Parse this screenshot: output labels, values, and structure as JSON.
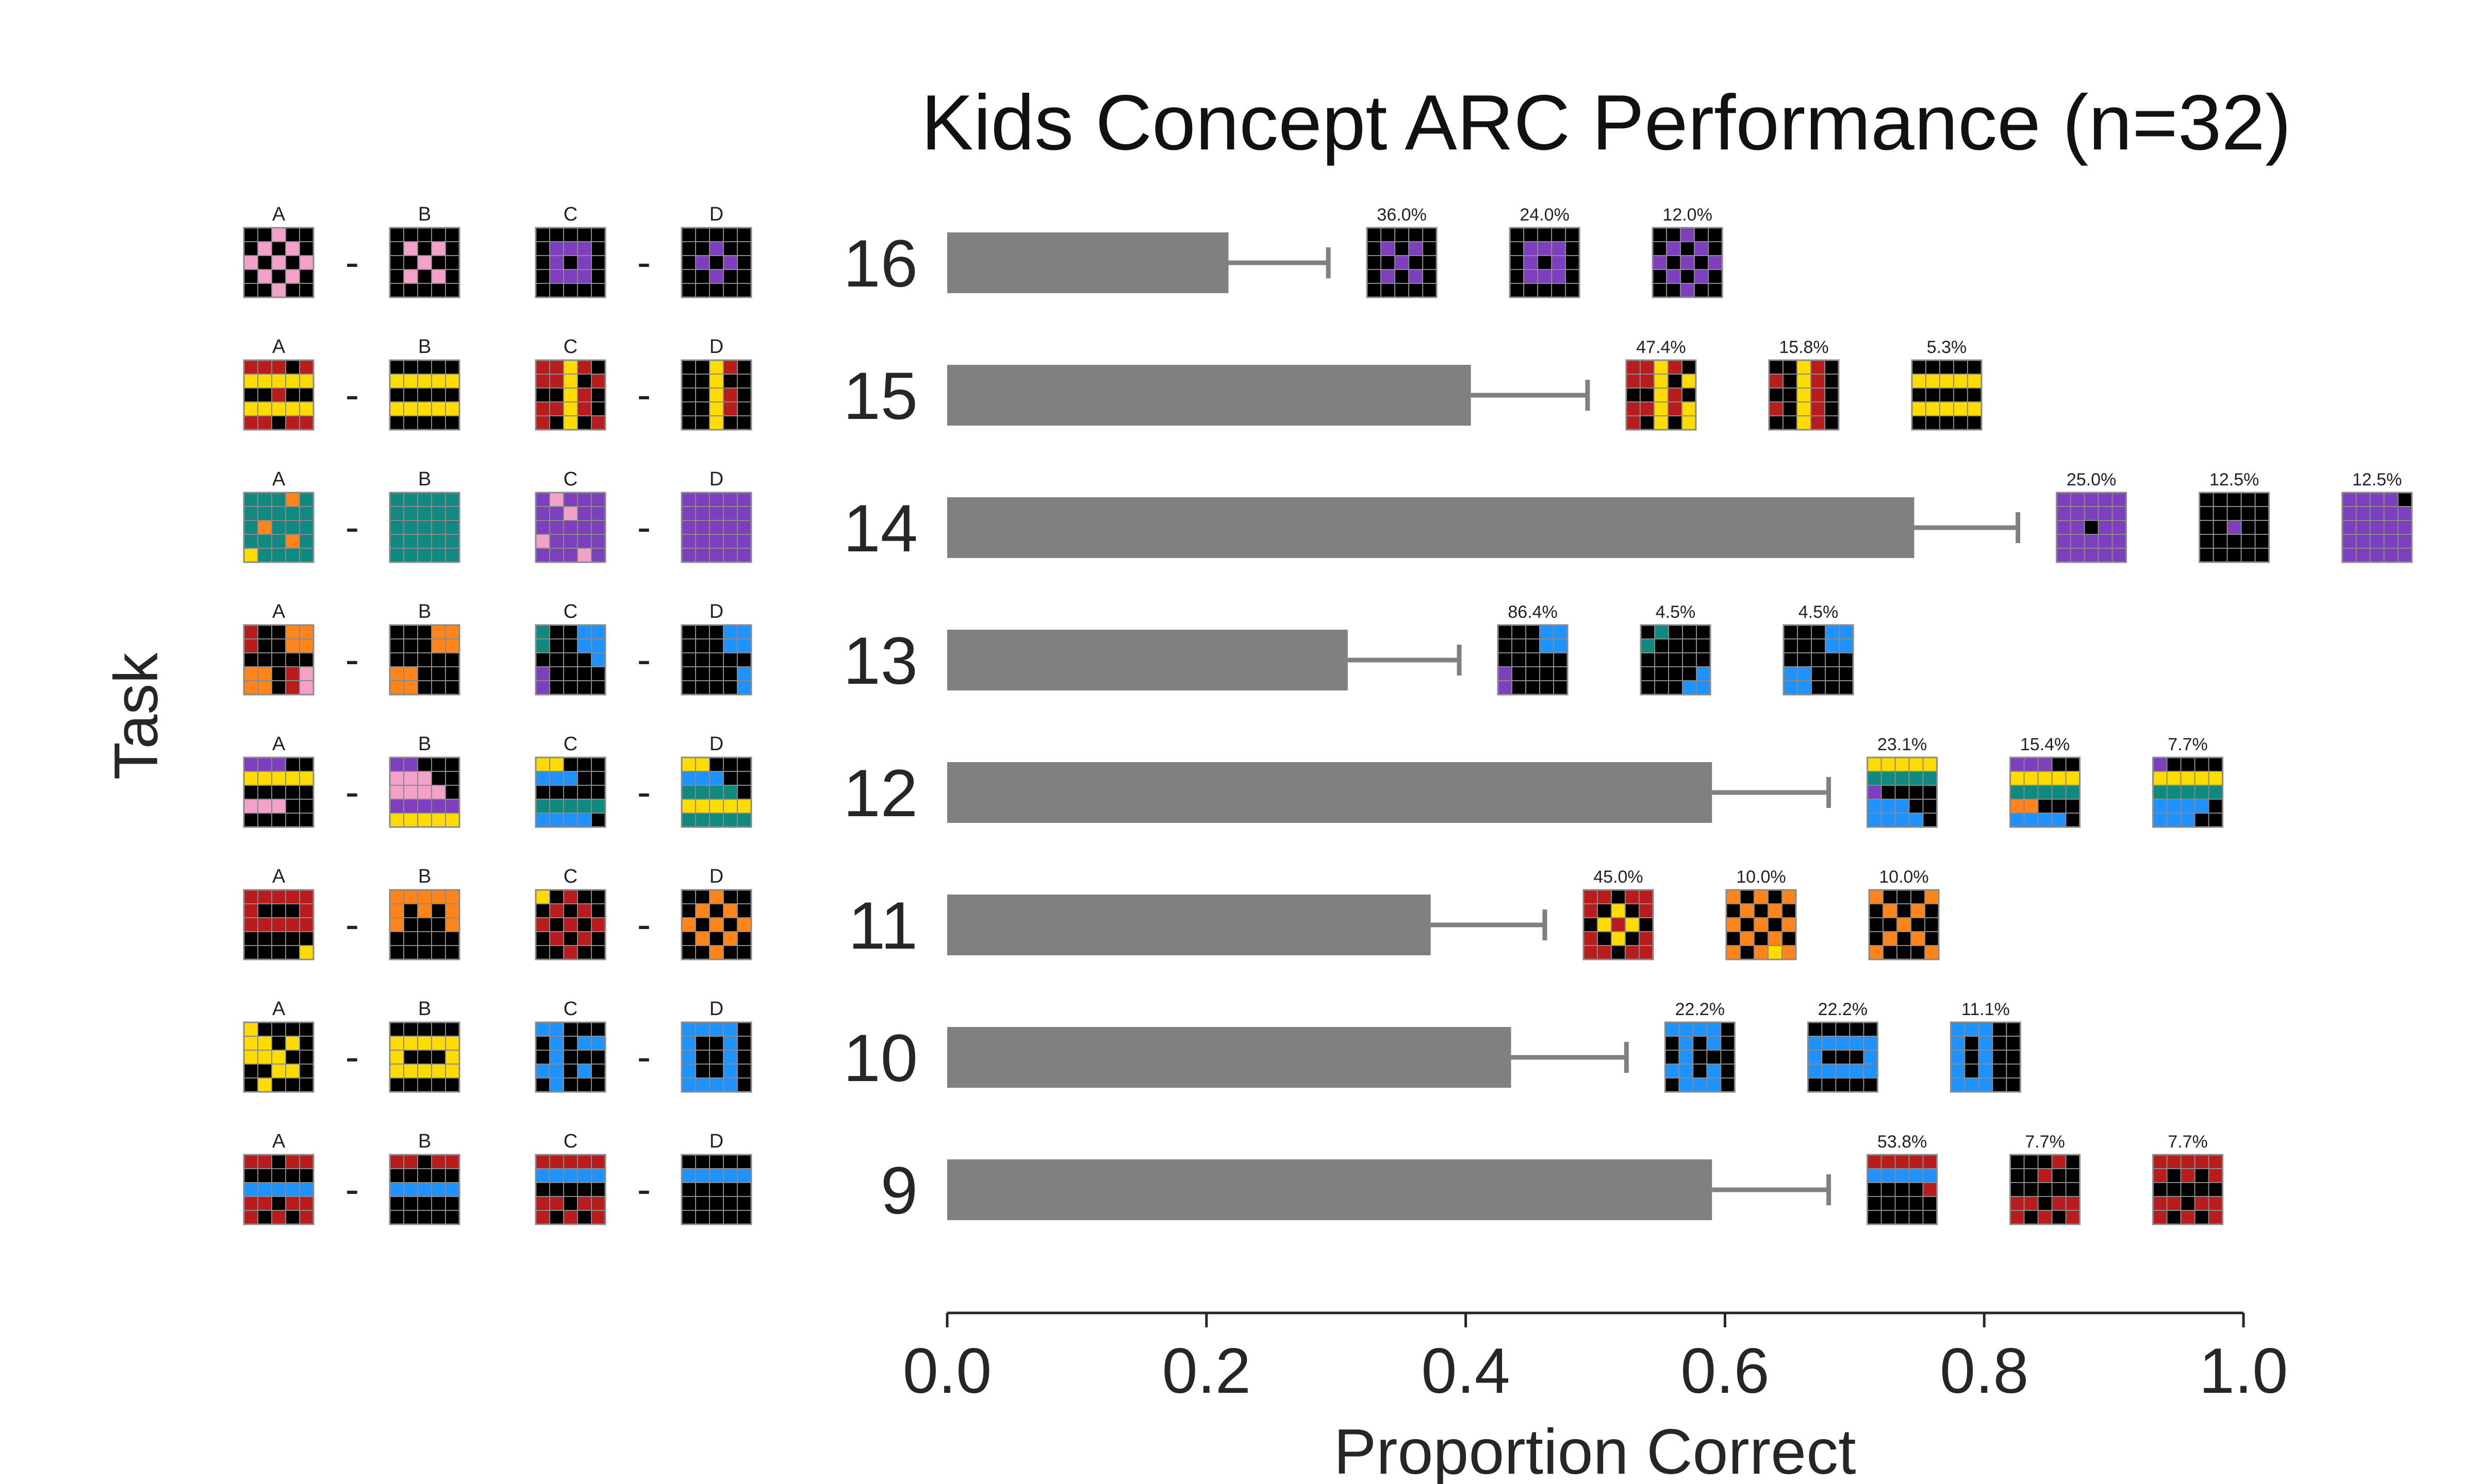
{
  "chart_data": {
    "type": "bar",
    "orientation": "horizontal",
    "title": "Kids Concept ARC Performance (n=32)",
    "xlabel": "Proportion Correct",
    "ylabel": "Task",
    "xlim": [
      0,
      1
    ],
    "xticks": [
      "0.0",
      "0.2",
      "0.4",
      "0.6",
      "0.8",
      "1.0"
    ],
    "bar_color": "#808080",
    "grid": false,
    "categories": [
      "16",
      "15",
      "14",
      "13",
      "12",
      "11",
      "10",
      "9"
    ],
    "values": [
      0.217,
      0.404,
      0.746,
      0.309,
      0.59,
      0.373,
      0.435,
      0.59
    ],
    "error_upper": [
      0.294,
      0.494,
      0.826,
      0.395,
      0.68,
      0.461,
      0.524,
      0.68
    ],
    "example_labels": [
      "A",
      "B",
      "C",
      "D"
    ],
    "separator": "-",
    "palette": {
      "0": "#000000",
      "1": "#1E93FF",
      "2": "#B91C1C",
      "3": "#0E8A80",
      "4": "#FFDC00",
      "5": "#F3A1C8",
      "6": "#FF851B",
      "7": "#7E3FBF"
    },
    "tasks": [
      {
        "task": "16",
        "examples": [
          [
            "00500",
            "05050",
            "50505",
            "05050",
            "00500"
          ],
          [
            "00000",
            "05050",
            "00500",
            "05050",
            "00000"
          ],
          [
            "00000",
            "07770",
            "07070",
            "07770",
            "00000"
          ],
          [
            "00000",
            "00700",
            "07070",
            "00700",
            "00000"
          ]
        ],
        "responses": [
          {
            "pct": "36.0%",
            "grid": [
              "00000",
              "07070",
              "00700",
              "07070",
              "00000"
            ]
          },
          {
            "pct": "24.0%",
            "grid": [
              "00000",
              "07770",
              "07070",
              "07770",
              "00000"
            ]
          },
          {
            "pct": "12.0%",
            "grid": [
              "00700",
              "07070",
              "70707",
              "07070",
              "00700"
            ]
          }
        ]
      },
      {
        "task": "15",
        "examples": [
          [
            "22202",
            "44444",
            "00200",
            "44444",
            "22022"
          ],
          [
            "00000",
            "44444",
            "00000",
            "44444",
            "00000"
          ],
          [
            "22420",
            "22402",
            "00420",
            "22420",
            "20402"
          ],
          [
            "00420",
            "00400",
            "00420",
            "00420",
            "00400"
          ]
        ],
        "responses": [
          {
            "pct": "47.4%",
            "grid": [
              "22420",
              "22404",
              "00420",
              "22424",
              "20404"
            ]
          },
          {
            "pct": "15.8%",
            "grid": [
              "00420",
              "20420",
              "00420",
              "20420",
              "00420"
            ]
          },
          {
            "pct": "5.3%",
            "grid": [
              "00000",
              "44444",
              "00000",
              "44444",
              "00000"
            ]
          }
        ]
      },
      {
        "task": "14",
        "examples": [
          [
            "33363",
            "33333",
            "36333",
            "33363",
            "43333"
          ],
          [
            "33333",
            "33333",
            "33333",
            "33333",
            "33333"
          ],
          [
            "75777",
            "77577",
            "77777",
            "57777",
            "77757"
          ],
          [
            "77777",
            "77777",
            "77777",
            "77777",
            "77777"
          ]
        ],
        "responses": [
          {
            "pct": "25.0%",
            "grid": [
              "77777",
              "77777",
              "77077",
              "77777",
              "77777"
            ]
          },
          {
            "pct": "12.5%",
            "grid": [
              "00000",
              "00000",
              "00700",
              "00000",
              "00000"
            ]
          },
          {
            "pct": "12.5%",
            "grid": [
              "77770",
              "77777",
              "77777",
              "77777",
              "77777"
            ]
          }
        ]
      },
      {
        "task": "13",
        "examples": [
          [
            "20066",
            "20066",
            "00000",
            "66025",
            "66025"
          ],
          [
            "00066",
            "00066",
            "00000",
            "66000",
            "66000"
          ],
          [
            "30011",
            "30011",
            "00001",
            "70000",
            "70000"
          ],
          [
            "00011",
            "00011",
            "00000",
            "00001",
            "00001"
          ]
        ],
        "responses": [
          {
            "pct": "86.4%",
            "grid": [
              "00011",
              "00011",
              "00000",
              "70000",
              "70000"
            ]
          },
          {
            "pct": "4.5%",
            "grid": [
              "03000",
              "30000",
              "00000",
              "00001",
              "00011"
            ]
          },
          {
            "pct": "4.5%",
            "grid": [
              "00011",
              "00011",
              "00000",
              "11000",
              "11000"
            ]
          }
        ]
      },
      {
        "task": "12",
        "examples": [
          [
            "77700",
            "44444",
            "00000",
            "55500",
            "00000"
          ],
          [
            "77000",
            "55500",
            "55550",
            "77777",
            "44444"
          ],
          [
            "44000",
            "11100",
            "00000",
            "33333",
            "11110"
          ],
          [
            "44000",
            "11100",
            "33330",
            "44444",
            "33333"
          ]
        ],
        "responses": [
          {
            "pct": "23.1%",
            "grid": [
              "44444",
              "33333",
              "70000",
              "11100",
              "11110"
            ]
          },
          {
            "pct": "15.4%",
            "grid": [
              "77700",
              "44444",
              "33333",
              "66000",
              "11110"
            ]
          },
          {
            "pct": "7.7%",
            "grid": [
              "70000",
              "44444",
              "33333",
              "11110",
              "11100"
            ]
          }
        ]
      },
      {
        "task": "11",
        "examples": [
          [
            "22222",
            "20002",
            "22222",
            "00000",
            "00004"
          ],
          [
            "66666",
            "60606",
            "60006",
            "00000",
            "00000"
          ],
          [
            "40200",
            "02020",
            "20202",
            "02020",
            "00200"
          ],
          [
            "00600",
            "06060",
            "60606",
            "06060",
            "00600"
          ]
        ],
        "responses": [
          {
            "pct": "45.0%",
            "grid": [
              "22022",
              "20402",
              "04240",
              "20402",
              "22022"
            ]
          },
          {
            "pct": "10.0%",
            "grid": [
              "60606",
              "06060",
              "60606",
              "06060",
              "60646"
            ]
          },
          {
            "pct": "10.0%",
            "grid": [
              "60006",
              "06060",
              "00600",
              "06060",
              "60006"
            ]
          }
        ]
      },
      {
        "task": "10",
        "examples": [
          [
            "40000",
            "44040",
            "44400",
            "00440",
            "04000"
          ],
          [
            "00000",
            "44444",
            "40004",
            "44444",
            "00000"
          ],
          [
            "11000",
            "01011",
            "01000",
            "11010",
            "01000"
          ],
          [
            "11110",
            "10010",
            "10010",
            "10010",
            "11110"
          ]
        ],
        "responses": [
          {
            "pct": "22.2%",
            "grid": [
              "11110",
              "01010",
              "01000",
              "11010",
              "01110"
            ]
          },
          {
            "pct": "22.2%",
            "grid": [
              "00000",
              "11111",
              "10001",
              "11111",
              "00000"
            ]
          },
          {
            "pct": "11.1%",
            "grid": [
              "11100",
              "10100",
              "10100",
              "10100",
              "11100"
            ]
          }
        ]
      },
      {
        "task": "9",
        "examples": [
          [
            "22022",
            "00000",
            "11111",
            "22022",
            "20202"
          ],
          [
            "22022",
            "00000",
            "11111",
            "00000",
            "00000"
          ],
          [
            "22222",
            "11111",
            "00000",
            "22022",
            "20202"
          ],
          [
            "00000",
            "11111",
            "00000",
            "00000",
            "00000"
          ]
        ],
        "responses": [
          {
            "pct": "53.8%",
            "grid": [
              "22222",
              "11111",
              "00002",
              "00000",
              "00000"
            ]
          },
          {
            "pct": "7.7%",
            "grid": [
              "00020",
              "00200",
              "00000",
              "22022",
              "20202"
            ]
          },
          {
            "pct": "7.7%",
            "grid": [
              "22222",
              "20202",
              "00000",
              "22022",
              "20202"
            ]
          }
        ]
      }
    ]
  }
}
